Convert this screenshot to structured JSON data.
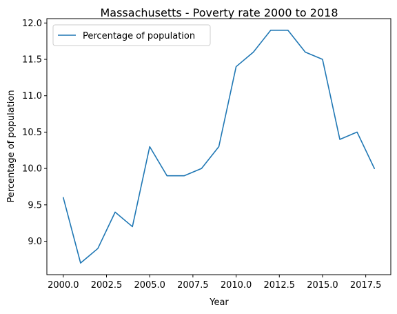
{
  "chart_data": {
    "type": "line",
    "title": "Massachusetts - Poverty rate 2000 to 2018",
    "xlabel": "Year",
    "ylabel": "Percentage of population",
    "xlim": [
      1999.05,
      2018.95
    ],
    "ylim": [
      8.54,
      12.06
    ],
    "x_ticks": [
      2000.0,
      2002.5,
      2005.0,
      2007.5,
      2010.0,
      2012.5,
      2015.0,
      2017.5
    ],
    "x_tick_labels": [
      "2000.0",
      "2002.5",
      "2005.0",
      "2007.5",
      "2010.0",
      "2012.5",
      "2015.0",
      "2017.5"
    ],
    "y_ticks": [
      9.0,
      9.5,
      10.0,
      10.5,
      11.0,
      11.5,
      12.0
    ],
    "y_tick_labels": [
      "9.0",
      "9.5",
      "10.0",
      "10.5",
      "11.0",
      "11.5",
      "12.0"
    ],
    "grid": false,
    "legend_position": "top-left",
    "series": [
      {
        "name": "Percentage of population",
        "color": "#1f77b4",
        "x": [
          2000,
          2001,
          2002,
          2003,
          2004,
          2005,
          2006,
          2007,
          2008,
          2009,
          2010,
          2011,
          2012,
          2013,
          2014,
          2015,
          2016,
          2017,
          2018
        ],
        "y": [
          9.6,
          8.7,
          8.9,
          9.4,
          9.2,
          10.3,
          9.9,
          9.9,
          10.0,
          10.3,
          11.4,
          11.6,
          11.9,
          11.9,
          11.6,
          11.5,
          10.4,
          10.5,
          10.0
        ]
      }
    ]
  }
}
